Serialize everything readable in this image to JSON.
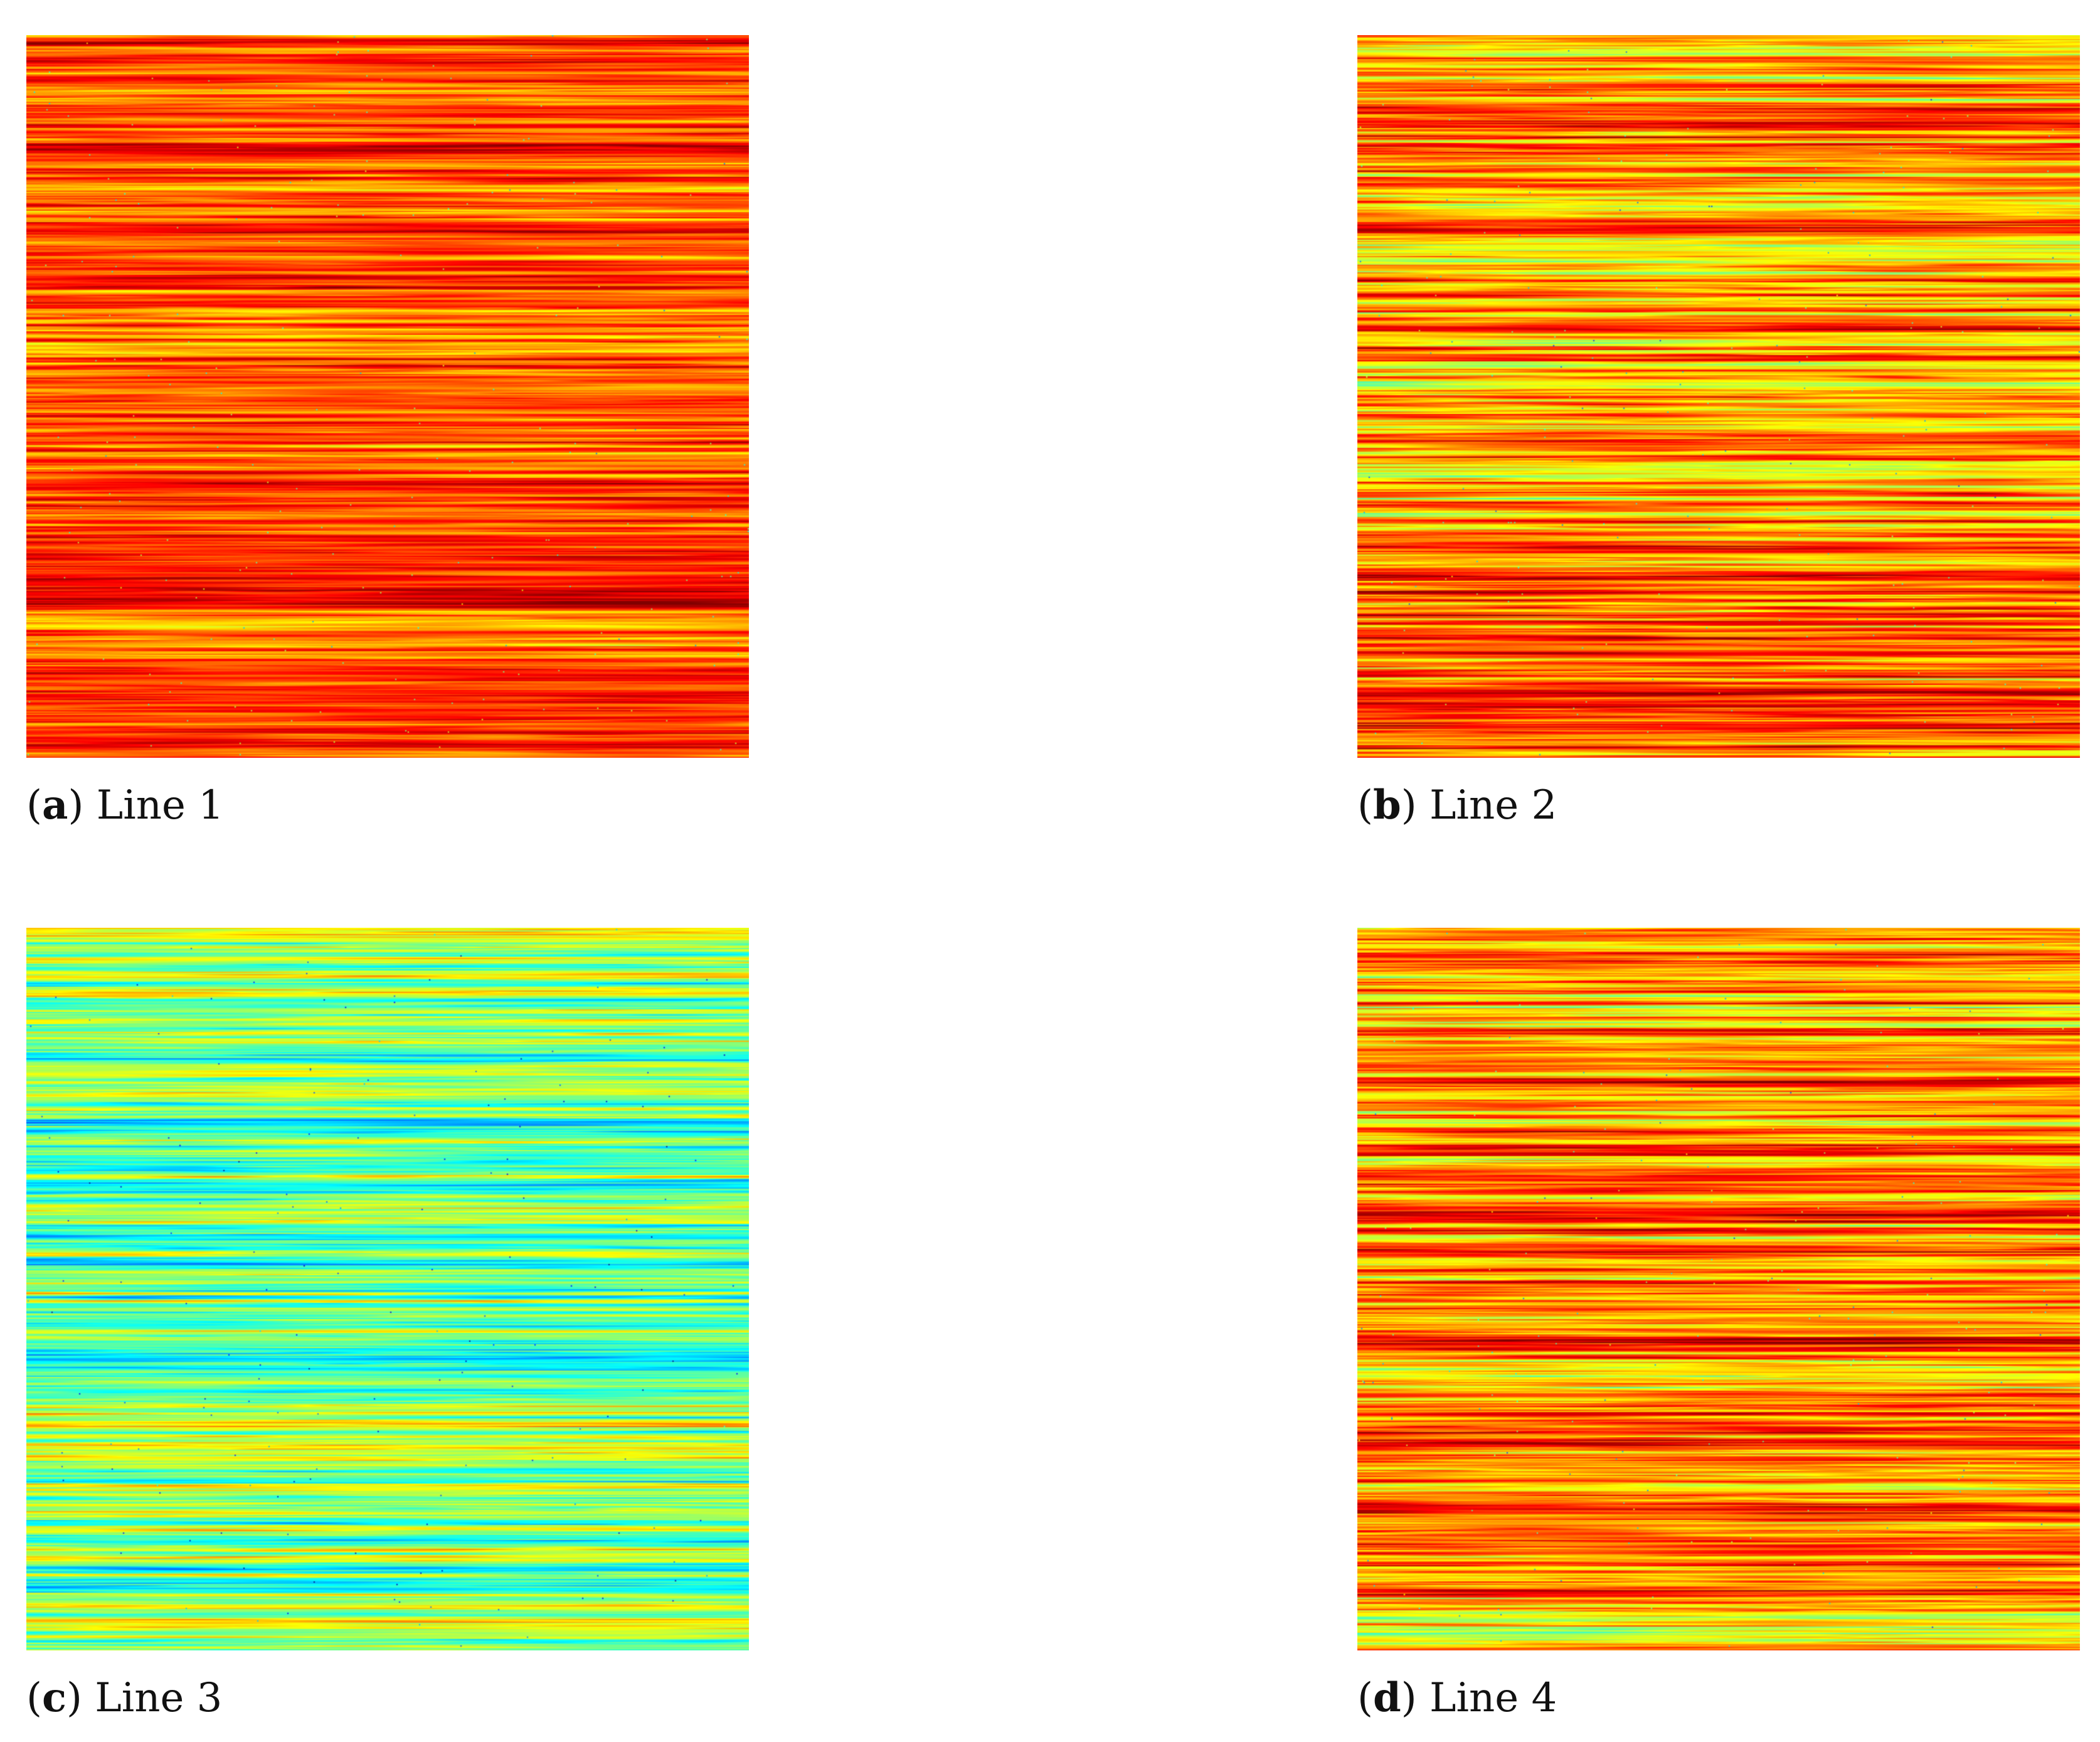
{
  "chart_data": [
    {
      "type": "heatmap",
      "panel_letter": "a",
      "title": "Line 1",
      "colormap": "jet",
      "dominant_range": [
        0.6,
        1.0
      ],
      "mean_level": 0.8,
      "texture": "horizontal streaks"
    },
    {
      "type": "heatmap",
      "panel_letter": "b",
      "title": "Line 2",
      "colormap": "jet",
      "dominant_range": [
        0.45,
        1.0
      ],
      "mean_level": 0.72,
      "texture": "horizontal streaks"
    },
    {
      "type": "heatmap",
      "panel_letter": "c",
      "title": "Line 3",
      "colormap": "jet",
      "dominant_range": [
        0.25,
        0.75
      ],
      "mean_level": 0.5,
      "texture": "horizontal streaks"
    },
    {
      "type": "heatmap",
      "panel_letter": "d",
      "title": "Line 4",
      "colormap": "jet",
      "dominant_range": [
        0.45,
        1.0
      ],
      "mean_level": 0.76,
      "texture": "horizontal streaks"
    }
  ]
}
